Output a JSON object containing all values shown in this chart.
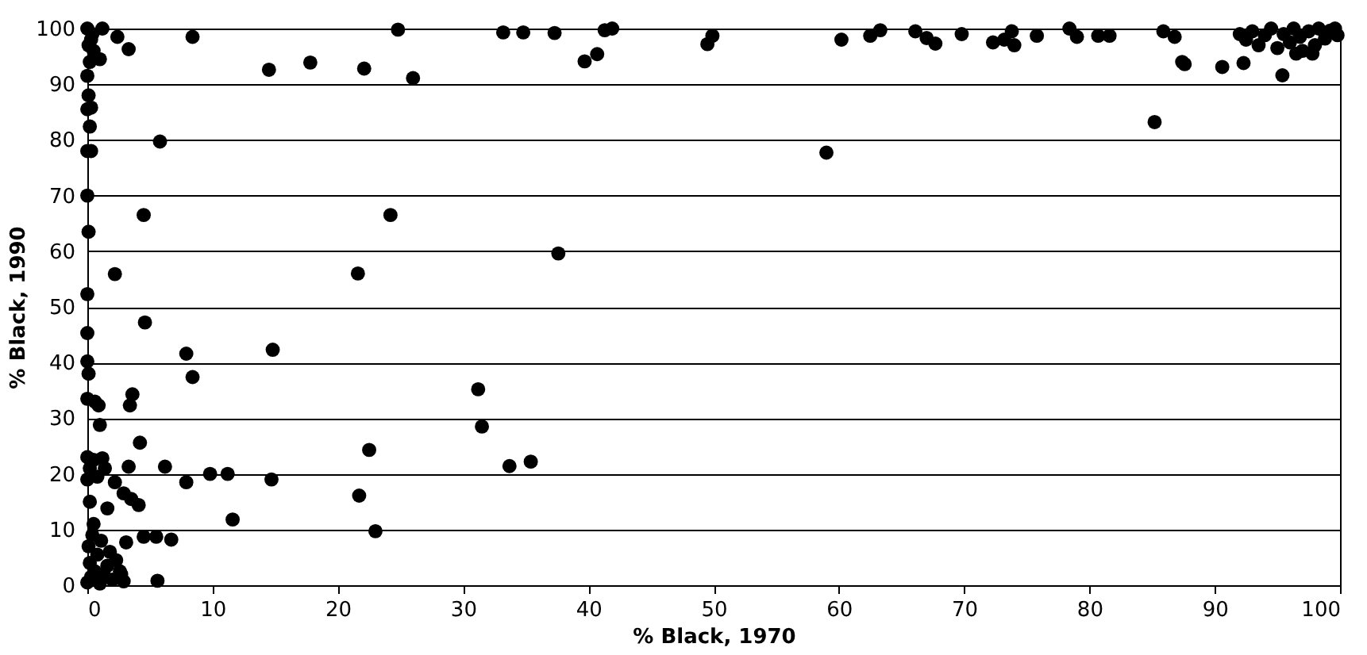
{
  "chart_data": {
    "type": "scatter",
    "xlabel": "% Black, 1970",
    "ylabel": "% Black, 1990",
    "xlim": [
      0,
      100
    ],
    "ylim": [
      0,
      100
    ],
    "xticks": [
      0,
      10,
      20,
      30,
      40,
      50,
      60,
      70,
      80,
      90,
      100
    ],
    "yticks": [
      0,
      10,
      20,
      30,
      40,
      50,
      60,
      70,
      80,
      90,
      100
    ],
    "grid": "y",
    "marker": "circle",
    "series": [
      {
        "color": "#000000",
        "x": [
          0,
          0.3,
          0.5,
          0.2,
          1,
          1.2,
          2.4,
          3.3,
          8.4,
          14.5,
          17.8,
          0,
          0.1,
          0,
          0.3,
          0.2,
          5.8,
          0,
          0.3,
          0,
          4.5,
          0.1,
          2.2,
          0,
          4.6,
          0.1,
          0.4,
          0,
          7.9,
          14.8,
          0,
          0.1,
          8.4,
          0,
          0.6,
          0.9,
          3.6,
          3.4,
          1,
          4.2,
          0,
          0.5,
          1.2,
          0.2,
          1.4,
          3.3,
          6.2,
          7.9,
          9.8,
          11.2,
          14.7,
          2.2,
          2.9,
          3.5,
          4.1,
          0.2,
          1.6,
          11.6,
          3.1,
          4.5,
          5.5,
          6.7,
          5.6,
          0,
          0.3,
          0.6,
          0.2,
          0.8,
          0.1,
          0.4,
          1,
          1.3,
          1.6,
          2,
          2.3,
          2.6,
          2.9,
          1.8,
          0.5,
          1.1,
          0,
          0.8,
          2.7,
          22.1,
          24.8,
          26,
          33.2,
          34.8,
          37.3,
          39.7,
          40.7,
          41.3,
          41.9,
          49.5,
          49.9,
          60.2,
          59,
          24.2,
          37.6,
          21.6,
          31.2,
          31.5,
          22.5,
          33.7,
          35.4,
          21.7,
          23,
          62.5,
          63.3,
          66.1,
          67,
          67.7,
          69.8,
          72.3,
          73.2,
          73.8,
          74,
          75.8,
          78.4,
          79,
          80.7,
          81.6,
          85.9,
          86.8,
          87.4,
          87.6,
          90.6,
          92.3,
          95.4,
          85.2,
          92.5,
          93,
          93.5,
          94,
          94.5,
          95,
          95.5,
          96,
          96.3,
          96.8,
          97,
          97.5,
          98,
          98.3,
          98.8,
          99.2,
          99.6,
          99.8,
          97.8,
          96.5,
          92
        ],
        "values": [
          100,
          98,
          96,
          94,
          94.5,
          100,
          98.5,
          96.3,
          98.5,
          92.6,
          93.9,
          91.5,
          88,
          85.5,
          85.8,
          82.4,
          79.7,
          78,
          78,
          70,
          66.5,
          63.5,
          55.9,
          52.3,
          47.2,
          97,
          99,
          45.3,
          41.6,
          42.3,
          40.2,
          38,
          37.4,
          33.5,
          33,
          32.3,
          34.3,
          32.3,
          28.8,
          25.6,
          23,
          22.5,
          22.8,
          21,
          21,
          21.3,
          21.3,
          18.5,
          20,
          20,
          19,
          18.5,
          16.5,
          15.5,
          14.4,
          15,
          13.8,
          11.8,
          7.7,
          8.7,
          8.7,
          8.2,
          0.8,
          0.5,
          1.5,
          2.5,
          4,
          5.5,
          7,
          9,
          0.3,
          2,
          3.5,
          1,
          4.5,
          2.5,
          0.7,
          6,
          11,
          8,
          19,
          19.5,
          2,
          92.8,
          99.8,
          91.1,
          99.3,
          99.3,
          99.2,
          94.1,
          95.4,
          99.7,
          100,
          97.2,
          98.7,
          98,
          77.7,
          66.5,
          59.6,
          56,
          35.2,
          28.5,
          24.3,
          21.4,
          22.2,
          16.1,
          9.7,
          98.7,
          99.7,
          99.5,
          98.3,
          97.3,
          99,
          97.5,
          98,
          99.5,
          97,
          98.7,
          100,
          98.5,
          98.7,
          98.7,
          99.5,
          98.5,
          94,
          93.6,
          93.1,
          93.8,
          91.6,
          83.2,
          98,
          99.5,
          97,
          98.8,
          100,
          96.5,
          99,
          97.5,
          100,
          98.5,
          96,
          99.5,
          97,
          100,
          98.2,
          99.6,
          100,
          98.8,
          95.5,
          95.5,
          99
        ]
      }
    ]
  }
}
